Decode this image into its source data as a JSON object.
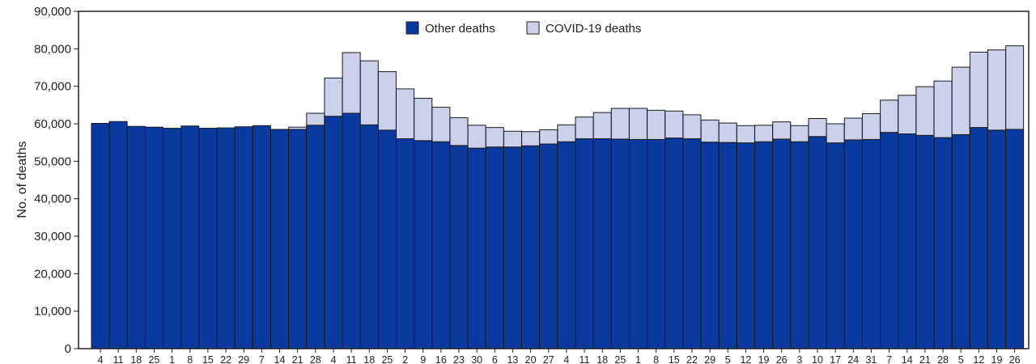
{
  "chart_data": {
    "type": "bar",
    "stacked": true,
    "title": "",
    "xlabel": "",
    "ylabel": "No. of deaths",
    "ylim": [
      0,
      90000
    ],
    "y_ticks": [
      "0",
      "10,000",
      "20,000",
      "30,000",
      "40,000",
      "50,000",
      "60,000",
      "70,000",
      "80,000",
      "90,000"
    ],
    "y_tick_values": [
      0,
      10000,
      20000,
      30000,
      40000,
      50000,
      60000,
      70000,
      80000,
      90000
    ],
    "grid": false,
    "legend_position": "top-center",
    "categories": [
      "4",
      "11",
      "18",
      "25",
      "1",
      "8",
      "15",
      "22",
      "29",
      "7",
      "14",
      "21",
      "28",
      "4",
      "11",
      "18",
      "25",
      "2",
      "9",
      "16",
      "23",
      "30",
      "6",
      "13",
      "20",
      "27",
      "4",
      "11",
      "18",
      "25",
      "1",
      "8",
      "15",
      "22",
      "29",
      "5",
      "12",
      "19",
      "26",
      "3",
      "10",
      "17",
      "24",
      "31",
      "7",
      "14",
      "21",
      "28",
      "5",
      "12",
      "19",
      "26"
    ],
    "series": [
      {
        "name": "Other deaths",
        "color": "#0a3aa0",
        "values": [
          60100,
          60600,
          59300,
          59100,
          58800,
          59400,
          58800,
          58900,
          59200,
          59500,
          58500,
          58500,
          59600,
          62000,
          62800,
          59700,
          58300,
          56000,
          55500,
          55200,
          54200,
          53500,
          53800,
          53800,
          54100,
          54600,
          55200,
          56000,
          56000,
          55900,
          55800,
          55800,
          56200,
          56000,
          55100,
          55000,
          54900,
          55200,
          55900,
          55200,
          56600,
          54900,
          55700,
          55800,
          57700,
          57300,
          56900,
          56300,
          57100,
          59000,
          58300,
          58500
        ]
      },
      {
        "name": "COVID-19 deaths",
        "color": "#ccd0ec",
        "values": [
          0,
          0,
          0,
          0,
          0,
          0,
          0,
          0,
          0,
          0,
          0,
          600,
          3200,
          10200,
          16200,
          17100,
          15600,
          13300,
          11300,
          9200,
          7400,
          6100,
          5200,
          4200,
          3800,
          3800,
          4500,
          5800,
          7000,
          8200,
          8300,
          7800,
          7200,
          6400,
          5900,
          5200,
          4600,
          4400,
          4600,
          4300,
          4800,
          5100,
          5800,
          6900,
          8600,
          10300,
          13000,
          15100,
          18000,
          20100,
          21400,
          22300
        ]
      }
    ]
  }
}
